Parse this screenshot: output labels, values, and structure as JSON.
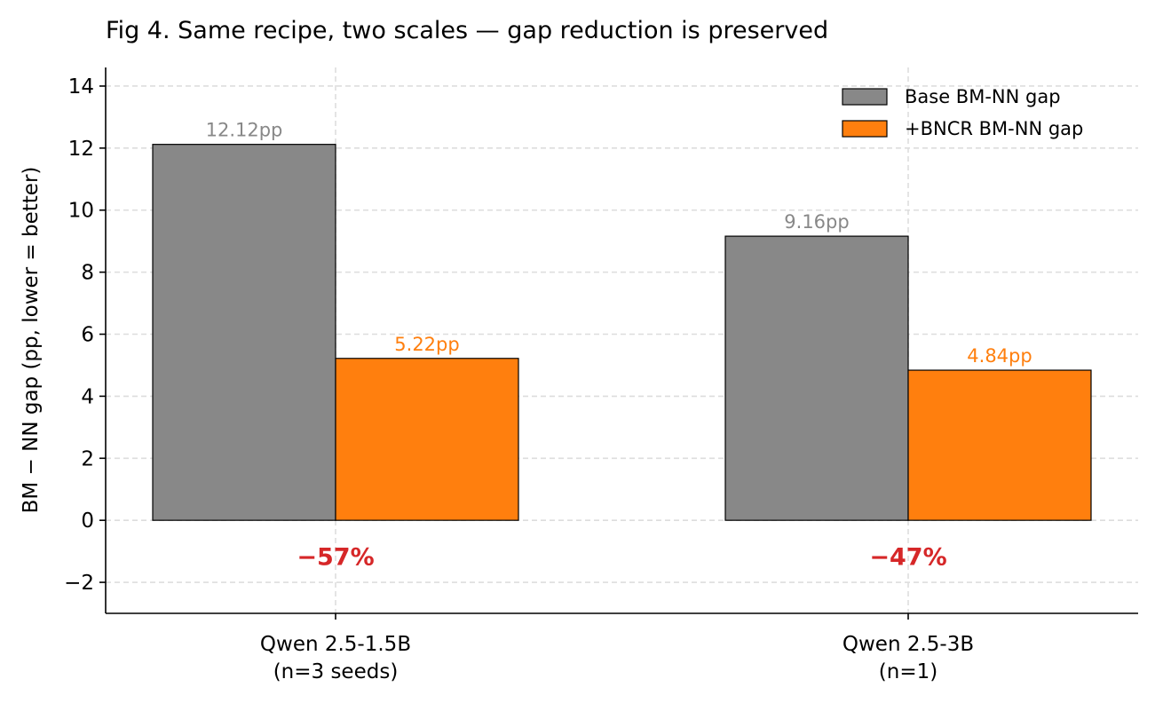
{
  "chart_data": {
    "type": "bar",
    "title": "Fig 4. Same recipe, two scales — gap reduction is preserved",
    "xlabel": "",
    "ylabel": "BM − NN gap (pp, lower = better)",
    "categories": [
      [
        "Qwen 2.5-1.5B",
        "(n=3 seeds)"
      ],
      [
        "Qwen 2.5-3B",
        "(n=1)"
      ]
    ],
    "series": [
      {
        "name": "Base BM-NN gap",
        "values": [
          12.12,
          9.16
        ],
        "labels": [
          "12.12pp",
          "9.16pp"
        ],
        "color": "#888888"
      },
      {
        "name": "+BNCR BM-NN gap",
        "values": [
          5.22,
          4.84
        ],
        "labels": [
          "5.22pp",
          "4.84pp"
        ],
        "color": "#ff7f0e"
      }
    ],
    "annotations": [
      {
        "category_index": 0,
        "text": "−57%",
        "y": -1.15,
        "color": "#d62728"
      },
      {
        "category_index": 1,
        "text": "−47%",
        "y": -1.15,
        "color": "#d62728"
      }
    ],
    "ylim": [
      -3,
      14.6
    ],
    "yticks": [
      -2,
      0,
      2,
      4,
      6,
      8,
      10,
      12,
      14
    ],
    "ytick_labels": [
      "−2",
      "0",
      "2",
      "4",
      "6",
      "8",
      "10",
      "12",
      "14"
    ],
    "grid": true,
    "legend_position": "top-right",
    "bar_edge_color": "#000000"
  }
}
